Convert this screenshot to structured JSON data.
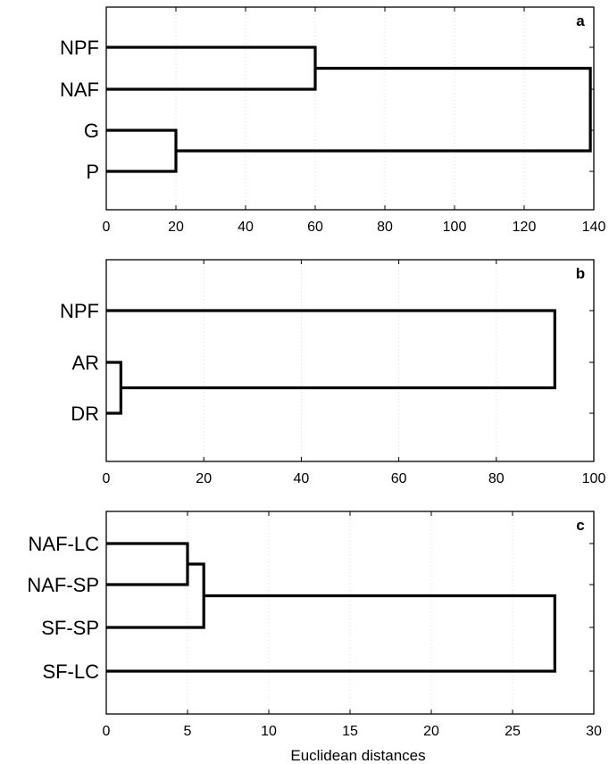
{
  "chart_data": [
    {
      "type": "dendrogram",
      "panel_label": "a",
      "leaves": [
        "NPF",
        "NAF",
        "G",
        "P"
      ],
      "merges": [
        {
          "members": [
            "NPF",
            "NAF"
          ],
          "distance": 60
        },
        {
          "members": [
            "G",
            "P"
          ],
          "distance": 20
        },
        {
          "members": [
            "NPF+NAF",
            "G+P"
          ],
          "distance": 139
        }
      ],
      "xlim": [
        0,
        140
      ],
      "x_ticks": [
        0,
        20,
        40,
        60,
        80,
        100,
        120,
        140
      ],
      "tick_labels": [
        "0",
        "20",
        "40",
        "60",
        "80",
        "100",
        "120",
        "140"
      ],
      "grid": true
    },
    {
      "type": "dendrogram",
      "panel_label": "b",
      "leaves": [
        "NPF",
        "AR",
        "DR"
      ],
      "merges": [
        {
          "members": [
            "AR",
            "DR"
          ],
          "distance": 3
        },
        {
          "members": [
            "NPF",
            "AR+DR"
          ],
          "distance": 92
        }
      ],
      "xlim": [
        0,
        100
      ],
      "x_ticks": [
        0,
        20,
        40,
        60,
        80,
        100
      ],
      "tick_labels": [
        "0",
        "20",
        "40",
        "60",
        "80",
        "100"
      ],
      "grid": true
    },
    {
      "type": "dendrogram",
      "panel_label": "c",
      "leaves": [
        "NAF-LC",
        "NAF-SP",
        "SF-SP",
        "SF-LC"
      ],
      "merges": [
        {
          "members": [
            "NAF-LC",
            "NAF-SP"
          ],
          "distance": 5
        },
        {
          "members": [
            "NAF-LC+NAF-SP",
            "SF-SP"
          ],
          "distance": 6
        },
        {
          "members": [
            "NAF-LC+NAF-SP+SF-SP",
            "SF-LC"
          ],
          "distance": 27.6
        }
      ],
      "xlim": [
        0,
        30
      ],
      "x_ticks": [
        0,
        5,
        10,
        15,
        20,
        25,
        30
      ],
      "tick_labels": [
        "0",
        "5",
        "10",
        "15",
        "20",
        "25",
        "30"
      ],
      "grid": true,
      "xlabel": "Euclidean distances"
    }
  ]
}
